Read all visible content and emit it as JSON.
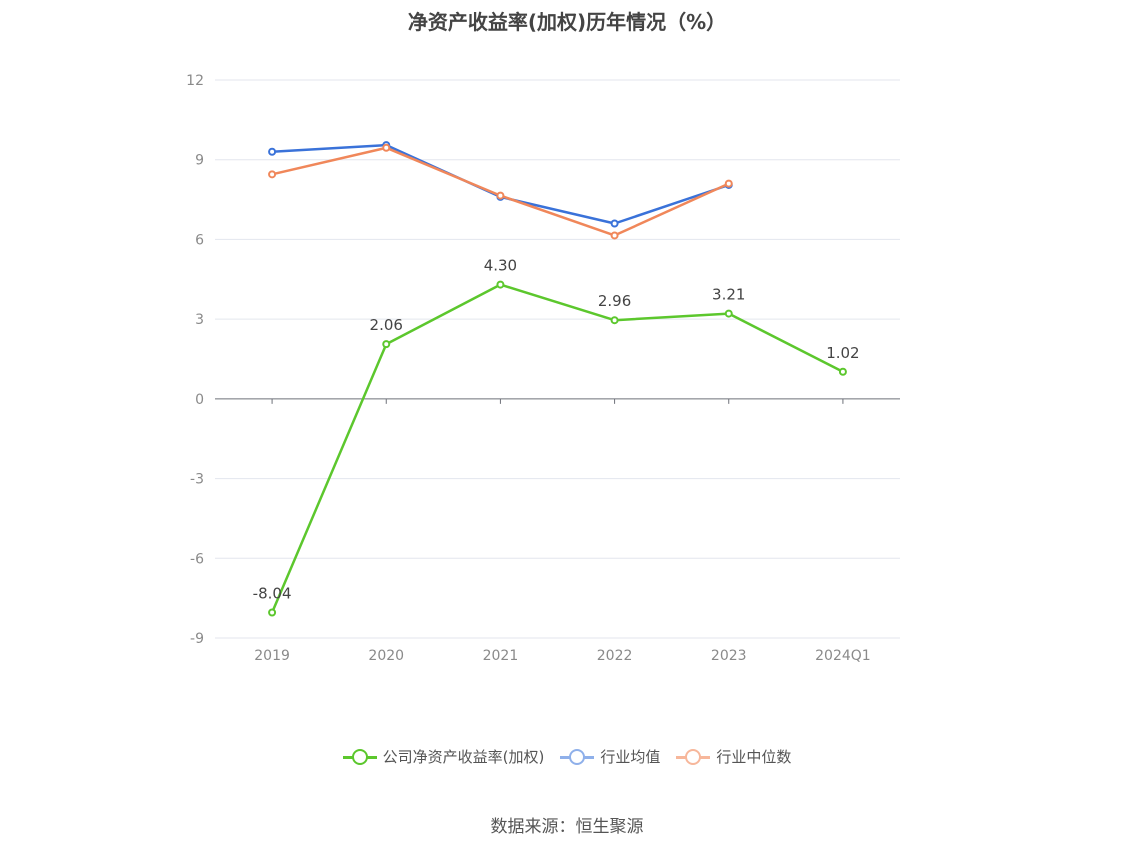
{
  "chart_data": {
    "type": "line",
    "title": "净资产收益率(加权)历年情况（%）",
    "categories": [
      "2019",
      "2020",
      "2021",
      "2022",
      "2023",
      "2024Q1"
    ],
    "ylim": [
      -9,
      12
    ],
    "yticks": [
      12,
      9,
      6,
      3,
      0,
      -3,
      -6,
      -9
    ],
    "grid": true,
    "legend_position": "bottom",
    "series": [
      {
        "name": "公司净资产收益率(加权)",
        "color": "#5cc72d",
        "values": [
          -8.04,
          2.06,
          4.3,
          2.96,
          3.21,
          1.02
        ],
        "data_labels": [
          "-8.04",
          "2.06",
          "4.30",
          "2.96",
          "3.21",
          "1.02"
        ]
      },
      {
        "name": "行业均值",
        "color": "#3a72d9",
        "legend_color": "#8fb0ea",
        "values": [
          9.3,
          9.55,
          7.6,
          6.6,
          8.05,
          null
        ]
      },
      {
        "name": "行业中位数",
        "color": "#f0875a",
        "legend_color": "#f7b79b",
        "values": [
          8.45,
          9.45,
          7.65,
          6.15,
          8.1,
          null
        ]
      }
    ]
  },
  "source_note": "数据来源：恒生聚源"
}
